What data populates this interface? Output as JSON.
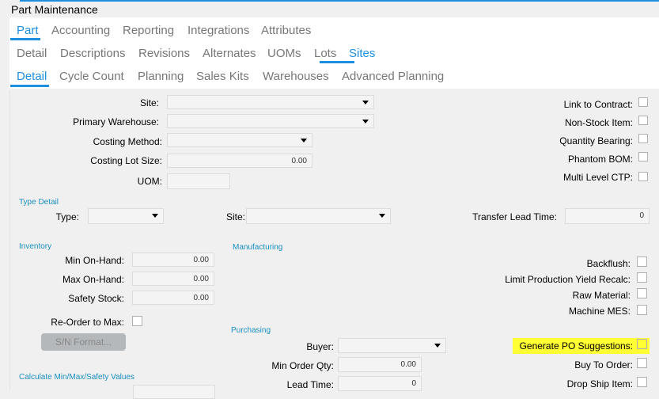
{
  "title": "Part Maintenance",
  "tabs_l1": [
    "Part",
    "Accounting",
    "Reporting",
    "Integrations",
    "Attributes"
  ],
  "tabs_l2": [
    "Detail",
    "Descriptions",
    "Revisions",
    "Alternates",
    "UOMs",
    "Lots",
    "Sites"
  ],
  "tabs_l3": [
    "Detail",
    "Cycle Count",
    "Planning",
    "Sales Kits",
    "Warehouses",
    "Advanced Planning"
  ],
  "active": {
    "l1": "Part",
    "l2": "Sites",
    "l3": "Detail"
  },
  "form": {
    "site": "Site:",
    "primary_warehouse": "Primary Warehouse:",
    "costing_method": "Costing Method:",
    "costing_lot_size": "Costing Lot Size:",
    "costing_lot_size_value": "0.00",
    "uom": "UOM:",
    "link_to_contract": "Link to Contract:",
    "non_stock_item": "Non-Stock Item:",
    "quantity_bearing": "Quantity Bearing:",
    "phantom_bom": "Phantom BOM:",
    "multi_level_ctp": "Multi Level CTP:",
    "type_detail": "Type Detail",
    "type": "Type:",
    "type_site": "Site:",
    "transfer_lead_time": "Transfer Lead Time:",
    "transfer_lead_time_value": "0",
    "inventory": "Inventory",
    "min_on_hand": "Min On-Hand:",
    "min_on_hand_value": "0.00",
    "max_on_hand": "Max On-Hand:",
    "max_on_hand_value": "0.00",
    "safety_stock": "Safety Stock:",
    "safety_stock_value": "0.00",
    "reorder_to_max": "Re-Order to Max:",
    "sn_format": "S/N Format...",
    "calc_section": "Calculate Min/Max/Safety Values",
    "manufacturing": "Manufacturing",
    "backflush": "Backflush:",
    "limit_yield": "Limit Production Yield Recalc:",
    "raw_material": "Raw Material:",
    "machine_mes": "Machine MES:",
    "purchasing": "Purchasing",
    "buyer": "Buyer:",
    "min_order_qty": "Min Order Qty:",
    "min_order_qty_value": "0.00",
    "lead_time": "Lead Time:",
    "lead_time_value": "0",
    "generate_po": "Generate PO Suggestions:",
    "buy_to_order": "Buy To Order:",
    "drop_ship_item": "Drop Ship Item:"
  },
  "colors": {
    "accent": "#1e8fe0",
    "highlight": "#ffff33",
    "section": "#1a8fc0"
  }
}
